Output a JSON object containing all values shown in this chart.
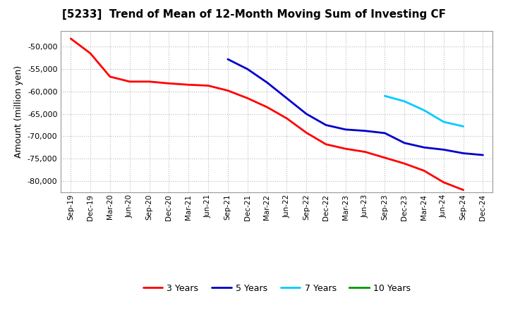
{
  "title": "[5233]  Trend of Mean of 12-Month Moving Sum of Investing CF",
  "ylabel": "Amount (million yen)",
  "background_color": "#ffffff",
  "grid_color": "#bbbbbb",
  "ylim": [
    -82500,
    -46500
  ],
  "yticks": [
    -80000,
    -75000,
    -70000,
    -65000,
    -60000,
    -55000,
    -50000
  ],
  "x_labels": [
    "Sep-19",
    "Dec-19",
    "Mar-20",
    "Jun-20",
    "Sep-20",
    "Dec-20",
    "Mar-21",
    "Jun-21",
    "Sep-21",
    "Dec-21",
    "Mar-22",
    "Jun-22",
    "Sep-22",
    "Dec-22",
    "Mar-23",
    "Jun-23",
    "Sep-23",
    "Dec-23",
    "Mar-24",
    "Jun-24",
    "Sep-24",
    "Dec-24"
  ],
  "series": {
    "3 Years": {
      "color": "#ff0000",
      "data_x": [
        0,
        1,
        2,
        3,
        4,
        5,
        6,
        7,
        8,
        9,
        10,
        11,
        12,
        13,
        14,
        15,
        16,
        17,
        18,
        19,
        20
      ],
      "data_y": [
        -48200,
        -51500,
        -56700,
        -57800,
        -57800,
        -58200,
        -58500,
        -58700,
        -59800,
        -61500,
        -63500,
        -66000,
        -69200,
        -71800,
        -72800,
        -73500,
        -74800,
        -76100,
        -77700,
        -80300,
        -82000
      ]
    },
    "5 Years": {
      "color": "#0000cc",
      "data_x": [
        8,
        9,
        10,
        11,
        12,
        13,
        14,
        15,
        16,
        17,
        18,
        19,
        20,
        21
      ],
      "data_y": [
        -52800,
        -55000,
        -58000,
        -61500,
        -65000,
        -67500,
        -68500,
        -68800,
        -69300,
        -71500,
        -72500,
        -73000,
        -73800,
        -74200
      ]
    },
    "7 Years": {
      "color": "#00ccff",
      "data_x": [
        16,
        17,
        18,
        19,
        20
      ],
      "data_y": [
        -61000,
        -62200,
        -64200,
        -66800,
        -67800
      ]
    },
    "10 Years": {
      "color": "#009900",
      "data_x": [],
      "data_y": []
    }
  },
  "legend_order": [
    "3 Years",
    "5 Years",
    "7 Years",
    "10 Years"
  ]
}
